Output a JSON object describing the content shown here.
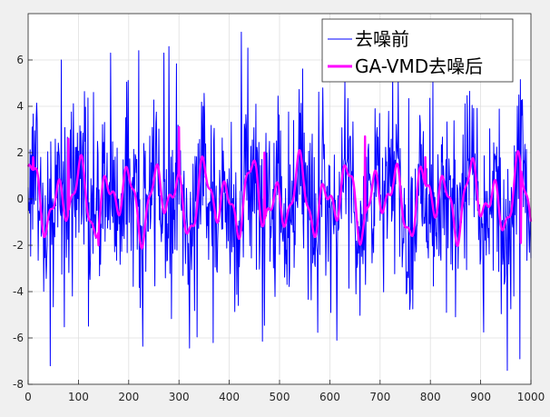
{
  "chart_data": {
    "type": "line",
    "title": "",
    "xlabel": "",
    "ylabel": "",
    "xlim": [
      0,
      1000
    ],
    "ylim": [
      -8,
      8
    ],
    "xticks": [
      0,
      100,
      200,
      300,
      400,
      500,
      600,
      700,
      800,
      900,
      1000
    ],
    "yticks": [
      -8,
      -6,
      -4,
      -2,
      0,
      2,
      4,
      6
    ],
    "grid": true,
    "legend_position": "top-right",
    "series": [
      {
        "name": "去噪前",
        "color": "#0000ff",
        "description_n_points": 1000,
        "key_points": [
          [
            0,
            0.5
          ],
          [
            44,
            -7.2
          ],
          [
            66,
            6.0
          ],
          [
            130,
            4.6
          ],
          [
            164,
            6.3
          ],
          [
            220,
            6.4
          ],
          [
            270,
            6.3
          ],
          [
            368,
            -6.2
          ],
          [
            424,
            7.2
          ],
          [
            630,
            5.2
          ],
          [
            805,
            5.2
          ],
          [
            953,
            -7.4
          ],
          [
            978,
            -6.9
          ]
        ]
      },
      {
        "name": "GA-VMD去噪后",
        "color": "#ff00ff",
        "description_n_points": 1000,
        "key_points": [
          [
            10,
            1.8
          ],
          [
            80,
            2.6
          ],
          [
            140,
            -2.0
          ],
          [
            300,
            3.1
          ],
          [
            470,
            2.0
          ],
          [
            670,
            2.7
          ],
          [
            790,
            1.8
          ],
          [
            980,
            -1.9
          ]
        ]
      }
    ]
  }
}
